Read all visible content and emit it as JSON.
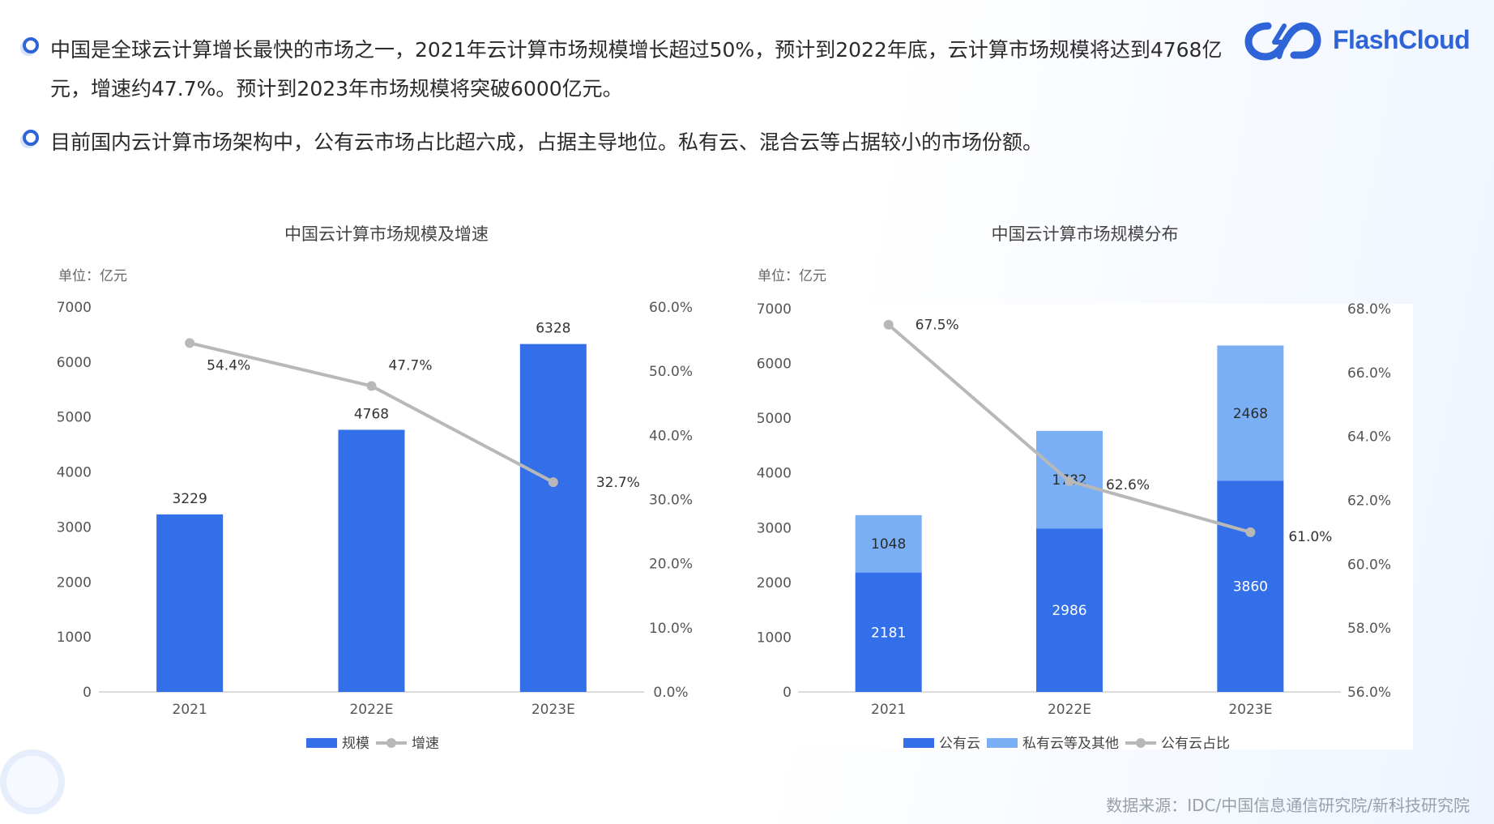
{
  "bullets": [
    "中国是全球云计算增长最快的市场之一，2021年云计算市场规模增长超过50%，预计到2022年底，云计算市场规模将达到4768亿元，增速约47.7%。预计到2023年市场规模将突破6000亿元。",
    "目前国内云计算市场架构中，公有云市场占比超六成，占据主导地位。私有云、混合云等占据较小的市场份额。"
  ],
  "logo": {
    "text": "FlashCloud",
    "icon": "flashcloud-logo-icon",
    "color": "#2f64d8"
  },
  "source": "数据来源：IDC/中国信息通信研究院/新科技研究院",
  "colors": {
    "bar": "#336fe9",
    "bar_light": "#7aaef5",
    "line": "#b8b8b8",
    "axis_text": "#555555"
  },
  "chart_data": [
    {
      "type": "bar",
      "title": "中国云计算市场规模及增速",
      "unit_label": "单位：亿元",
      "categories": [
        "2021",
        "2022E",
        "2023E"
      ],
      "series": [
        {
          "name": "规模",
          "kind": "bar",
          "values": [
            3229,
            4768,
            6328
          ],
          "labels": [
            "3229",
            "4768",
            "6328"
          ]
        },
        {
          "name": "增速",
          "kind": "line",
          "axis": "right",
          "values": [
            54.4,
            47.7,
            32.7
          ],
          "labels": [
            "54.4%",
            "47.7%",
            "32.7%"
          ]
        }
      ],
      "ylim": [
        0,
        7000
      ],
      "yticks": [
        "0",
        "1000",
        "2000",
        "3000",
        "4000",
        "5000",
        "6000",
        "7000"
      ],
      "y2lim": [
        0,
        60
      ],
      "y2ticks": [
        "0.0%",
        "10.0%",
        "20.0%",
        "30.0%",
        "40.0%",
        "50.0%",
        "60.0%"
      ],
      "legend_position": "bottom"
    },
    {
      "type": "bar",
      "stacked": true,
      "title": "中国云计算市场规模分布",
      "unit_label": "单位：亿元",
      "categories": [
        "2021",
        "2022E",
        "2023E"
      ],
      "series": [
        {
          "name": "公有云",
          "kind": "bar",
          "values": [
            2181,
            2986,
            3860
          ],
          "labels": [
            "2181",
            "2986",
            "3860"
          ]
        },
        {
          "name": "私有云等及其他",
          "kind": "bar",
          "values": [
            1048,
            1782,
            2468
          ],
          "labels": [
            "1048",
            "1782",
            "2468"
          ]
        },
        {
          "name": "公有云占比",
          "kind": "line",
          "axis": "right",
          "values": [
            67.5,
            62.6,
            61.0
          ],
          "labels": [
            "67.5%",
            "62.6%",
            "61.0%"
          ]
        }
      ],
      "ylim": [
        0,
        7000
      ],
      "yticks": [
        "0",
        "1000",
        "2000",
        "3000",
        "4000",
        "5000",
        "6000",
        "7000"
      ],
      "y2lim": [
        56,
        68
      ],
      "y2ticks": [
        "56.0%",
        "58.0%",
        "60.0%",
        "62.0%",
        "64.0%",
        "66.0%",
        "68.0%"
      ],
      "legend_position": "bottom"
    }
  ]
}
